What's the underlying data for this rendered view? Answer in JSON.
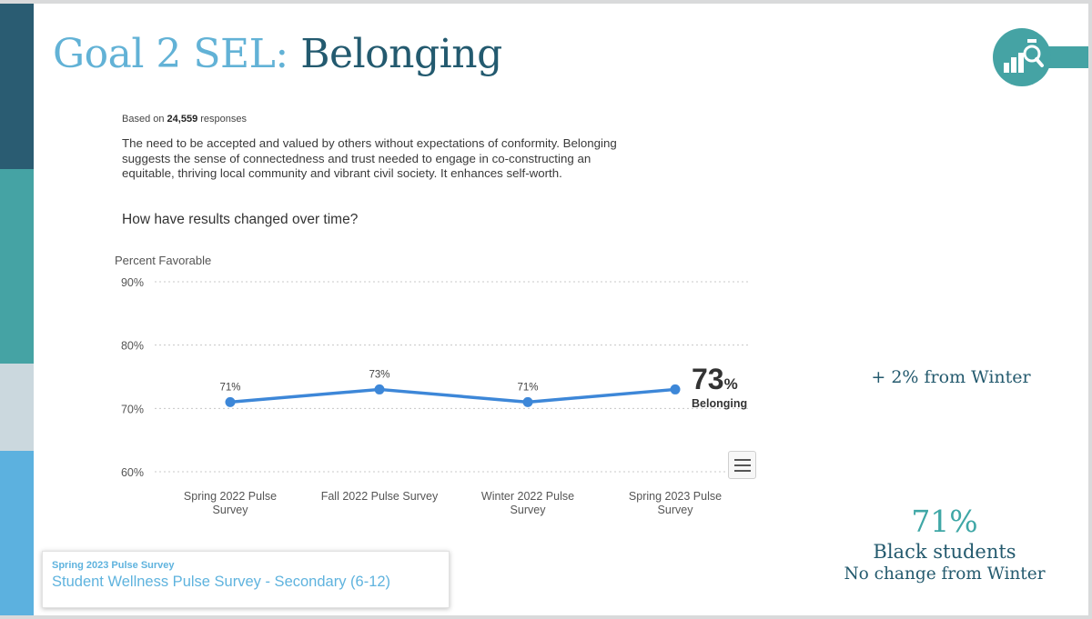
{
  "title": {
    "part1": "Goal 2 SEL:",
    "part2": "Belonging"
  },
  "responses": {
    "prefix": "Based on",
    "count": "24,559",
    "suffix": "responses"
  },
  "description": "The need to be accepted and valued by others without expectations of conformity. Belonging suggests the sense of connectedness and trust needed to engage in co-constructing an equitable, thriving local community and vibrant civil society. It enhances self-worth.",
  "question": "How have results changed over time?",
  "chart_data": {
    "type": "line",
    "ylabel": "Percent Favorable",
    "ylim": [
      60,
      90
    ],
    "yticks": [
      90,
      80,
      70,
      60
    ],
    "grid": true,
    "categories": [
      [
        "Spring 2022 Pulse",
        "Survey"
      ],
      [
        "Fall 2022 Pulse Survey"
      ],
      [
        "Winter 2022 Pulse",
        "Survey"
      ],
      [
        "Spring 2023 Pulse",
        "Survey"
      ]
    ],
    "series": [
      {
        "name": "Belonging",
        "values": [
          71,
          73,
          71,
          73
        ],
        "color": "#3d87d8"
      }
    ],
    "headline": {
      "value": "73",
      "unit": "%",
      "label": "Belonging"
    }
  },
  "change_note": "+ 2% from Winter",
  "subgroup": {
    "percent": "71%",
    "group": "Black students",
    "change": "No change from Winter"
  },
  "survey": {
    "term": "Spring 2023 Pulse Survey",
    "name": "Student Wellness Pulse Survey - Secondary (6-12)"
  },
  "colors": {
    "dark_teal": "#235a6f",
    "light_blue": "#62b2d6",
    "teal": "#45a3a4",
    "line_blue": "#3d87d8"
  }
}
